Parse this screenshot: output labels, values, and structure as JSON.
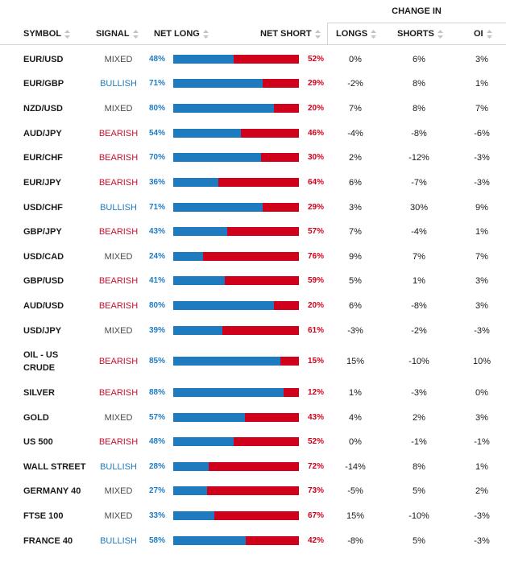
{
  "header": {
    "change_in": "CHANGE IN",
    "symbol": "SYMBOL",
    "signal": "SIGNAL",
    "net_long": "NET LONG",
    "net_short": "NET SHORT",
    "longs": "LONGS",
    "shorts": "SHORTS",
    "oi": "OI"
  },
  "colors": {
    "long": "#1f7bbf",
    "short": "#d0021b",
    "bullish": "#1f7bbf",
    "bearish": "#c8102e",
    "mixed": "#4a4a4a"
  },
  "rows": [
    {
      "symbol": "EUR/USD",
      "signal": "MIXED",
      "net_long": "48%",
      "net_short": "52%",
      "long_frac": 0.48,
      "longs": "0%",
      "shorts": "6%",
      "oi": "3%"
    },
    {
      "symbol": "EUR/GBP",
      "signal": "BULLISH",
      "net_long": "71%",
      "net_short": "29%",
      "long_frac": 0.71,
      "longs": "-2%",
      "shorts": "8%",
      "oi": "1%"
    },
    {
      "symbol": "NZD/USD",
      "signal": "MIXED",
      "net_long": "80%",
      "net_short": "20%",
      "long_frac": 0.8,
      "longs": "7%",
      "shorts": "8%",
      "oi": "7%"
    },
    {
      "symbol": "AUD/JPY",
      "signal": "BEARISH",
      "net_long": "54%",
      "net_short": "46%",
      "long_frac": 0.54,
      "longs": "-4%",
      "shorts": "-8%",
      "oi": "-6%"
    },
    {
      "symbol": "EUR/CHF",
      "signal": "BEARISH",
      "net_long": "70%",
      "net_short": "30%",
      "long_frac": 0.7,
      "longs": "2%",
      "shorts": "-12%",
      "oi": "-3%"
    },
    {
      "symbol": "EUR/JPY",
      "signal": "BEARISH",
      "net_long": "36%",
      "net_short": "64%",
      "long_frac": 0.36,
      "longs": "6%",
      "shorts": "-7%",
      "oi": "-3%"
    },
    {
      "symbol": "USD/CHF",
      "signal": "BULLISH",
      "net_long": "71%",
      "net_short": "29%",
      "long_frac": 0.71,
      "longs": "3%",
      "shorts": "30%",
      "oi": "9%"
    },
    {
      "symbol": "GBP/JPY",
      "signal": "BEARISH",
      "net_long": "43%",
      "net_short": "57%",
      "long_frac": 0.43,
      "longs": "7%",
      "shorts": "-4%",
      "oi": "1%"
    },
    {
      "symbol": "USD/CAD",
      "signal": "MIXED",
      "net_long": "24%",
      "net_short": "76%",
      "long_frac": 0.24,
      "longs": "9%",
      "shorts": "7%",
      "oi": "7%"
    },
    {
      "symbol": "GBP/USD",
      "signal": "BEARISH",
      "net_long": "41%",
      "net_short": "59%",
      "long_frac": 0.41,
      "longs": "5%",
      "shorts": "1%",
      "oi": "3%"
    },
    {
      "symbol": "AUD/USD",
      "signal": "BEARISH",
      "net_long": "80%",
      "net_short": "20%",
      "long_frac": 0.8,
      "longs": "6%",
      "shorts": "-8%",
      "oi": "3%"
    },
    {
      "symbol": "USD/JPY",
      "signal": "MIXED",
      "net_long": "39%",
      "net_short": "61%",
      "long_frac": 0.39,
      "longs": "-3%",
      "shorts": "-2%",
      "oi": "-3%"
    },
    {
      "symbol": "OIL - US CRUDE",
      "signal": "BEARISH",
      "net_long": "85%",
      "net_short": "15%",
      "long_frac": 0.85,
      "longs": "15%",
      "shorts": "-10%",
      "oi": "10%"
    },
    {
      "symbol": "SILVER",
      "signal": "BEARISH",
      "net_long": "88%",
      "net_short": "12%",
      "long_frac": 0.88,
      "longs": "1%",
      "shorts": "-3%",
      "oi": "0%"
    },
    {
      "symbol": "GOLD",
      "signal": "MIXED",
      "net_long": "57%",
      "net_short": "43%",
      "long_frac": 0.57,
      "longs": "4%",
      "shorts": "2%",
      "oi": "3%"
    },
    {
      "symbol": "US 500",
      "signal": "BEARISH",
      "net_long": "48%",
      "net_short": "52%",
      "long_frac": 0.48,
      "longs": "0%",
      "shorts": "-1%",
      "oi": "-1%"
    },
    {
      "symbol": "WALL STREET",
      "signal": "BULLISH",
      "net_long": "28%",
      "net_short": "72%",
      "long_frac": 0.28,
      "longs": "-14%",
      "shorts": "8%",
      "oi": "1%"
    },
    {
      "symbol": "GERMANY 40",
      "signal": "MIXED",
      "net_long": "27%",
      "net_short": "73%",
      "long_frac": 0.27,
      "longs": "-5%",
      "shorts": "5%",
      "oi": "2%"
    },
    {
      "symbol": "FTSE 100",
      "signal": "MIXED",
      "net_long": "33%",
      "net_short": "67%",
      "long_frac": 0.33,
      "longs": "15%",
      "shorts": "-10%",
      "oi": "-3%"
    },
    {
      "symbol": "FRANCE 40",
      "signal": "BULLISH",
      "net_long": "58%",
      "net_short": "42%",
      "long_frac": 0.58,
      "longs": "-8%",
      "shorts": "5%",
      "oi": "-3%"
    }
  ]
}
